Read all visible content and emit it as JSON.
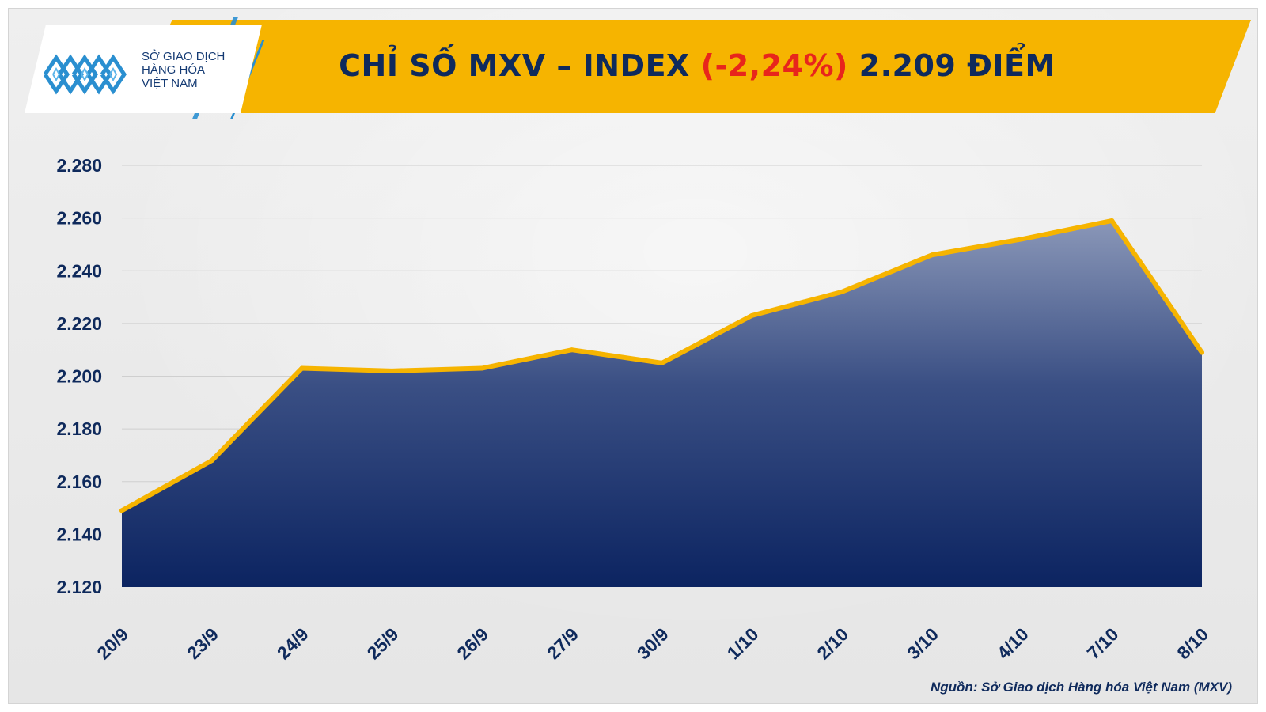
{
  "logo": {
    "lines": [
      "SỞ GIAO DỊCH",
      "HÀNG HÓA",
      "VIỆT NAM"
    ],
    "tm": "™"
  },
  "header": {
    "title_prefix": "CHỈ SỐ MXV – INDEX ",
    "change": "(-2,24%)",
    "title_suffix": " 2.209 ĐIỂM"
  },
  "source": "Nguồn: Sở Giao dịch Hàng hóa Việt Nam (MXV)",
  "colors": {
    "banner": "#f6b400",
    "line": "#f6b400",
    "area_top": "#8a97b8",
    "area_bottom": "#0c2461",
    "text": "#0f2a5c",
    "change": "#e8251c"
  },
  "chart_data": {
    "type": "area",
    "title": "CHỈ SỐ MXV – INDEX (-2,24%) 2.209 ĐIỂM",
    "xlabel": "",
    "ylabel": "",
    "categories": [
      "20/9",
      "23/9",
      "24/9",
      "25/9",
      "26/9",
      "27/9",
      "30/9",
      "1/10",
      "2/10",
      "3/10",
      "4/10",
      "7/10",
      "8/10"
    ],
    "series": [
      {
        "values": [
          2149,
          2168,
          2203,
          2202,
          2203,
          2210,
          2205,
          2223,
          2232,
          2246,
          2252,
          2259,
          2209
        ]
      }
    ],
    "ylim": [
      2120,
      2280
    ],
    "yticks": [
      2120,
      2140,
      2160,
      2180,
      2200,
      2220,
      2240,
      2260,
      2280
    ],
    "ytick_labels": [
      "2.120",
      "2.140",
      "2.160",
      "2.180",
      "2.200",
      "2.220",
      "2.240",
      "2.260",
      "2.280"
    ],
    "grid": true,
    "legend": "none"
  }
}
